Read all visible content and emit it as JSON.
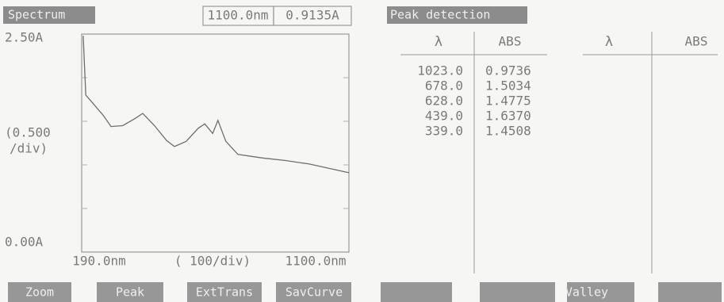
{
  "left": {
    "title": "Spectrum",
    "readout": [
      "1100.0nm",
      "0.9135A"
    ],
    "y_labels": [
      "2.50A",
      "(0.500",
      "/div)",
      "0.00A"
    ],
    "x_labels": [
      "190.0nm",
      "( 100/div)",
      "1100.0nm"
    ],
    "spectrum": {
      "type": "line",
      "xlim": [
        190,
        1100
      ],
      "ylim": [
        0,
        2.5
      ],
      "x": [
        195,
        204,
        222,
        263,
        290,
        330,
        371,
        398,
        438,
        479,
        506,
        546,
        587,
        609,
        636,
        654,
        681,
        722,
        803,
        884,
        965,
        1046,
        1100
      ],
      "values": [
        2.48,
        1.8,
        1.73,
        1.57,
        1.44,
        1.45,
        1.53,
        1.59,
        1.45,
        1.28,
        1.21,
        1.27,
        1.42,
        1.47,
        1.36,
        1.51,
        1.27,
        1.12,
        1.08,
        1.05,
        1.01,
        0.95,
        0.91
      ]
    },
    "buttons": [
      "Zoom",
      "Peak",
      "ExtTrans",
      "SavCurve"
    ]
  },
  "right": {
    "title": "Peak detection",
    "table_left": {
      "headers": [
        "λ",
        "ABS"
      ],
      "rows": [
        [
          "1023.0",
          "0.9736"
        ],
        [
          "678.0",
          "1.5034"
        ],
        [
          "628.0",
          "1.4775"
        ],
        [
          "439.0",
          "1.6370"
        ],
        [
          "339.0",
          "1.4508"
        ]
      ]
    },
    "table_right": {
      "headers": [
        "λ",
        "ABS"
      ]
    },
    "buttons": [
      "Valley"
    ]
  }
}
